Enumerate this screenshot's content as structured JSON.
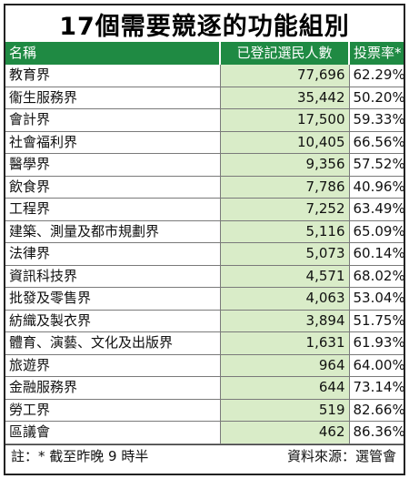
{
  "title": "17個需要競逐的功能組別",
  "headers": {
    "name": "名稱",
    "registered": "已登記選民人數",
    "turnout": "投票率*"
  },
  "rows": [
    {
      "name": "教育界",
      "registered": "77,696",
      "turnout": "62.29%"
    },
    {
      "name": "衞生服務界",
      "registered": "35,442",
      "turnout": "50.20%"
    },
    {
      "name": "會計界",
      "registered": "17,500",
      "turnout": "59.33%"
    },
    {
      "name": "社會福利界",
      "registered": "10,405",
      "turnout": "66.56%"
    },
    {
      "name": "醫學界",
      "registered": "9,356",
      "turnout": "57.52%"
    },
    {
      "name": "飲食界",
      "registered": "7,786",
      "turnout": "40.96%"
    },
    {
      "name": "工程界",
      "registered": "7,252",
      "turnout": "63.49%"
    },
    {
      "name": "建築、測量及都市規劃界",
      "registered": "5,116",
      "turnout": "65.09%"
    },
    {
      "name": "法律界",
      "registered": "5,073",
      "turnout": "60.14%"
    },
    {
      "name": "資訊科技界",
      "registered": "4,571",
      "turnout": "68.02%"
    },
    {
      "name": "批發及零售界",
      "registered": "4,063",
      "turnout": "53.04%"
    },
    {
      "name": "紡織及製衣界",
      "registered": "3,894",
      "turnout": "51.75%"
    },
    {
      "name": "體育、演藝、文化及出版界",
      "registered": "1,631",
      "turnout": "61.93%"
    },
    {
      "name": "旅遊界",
      "registered": "964",
      "turnout": "64.00%"
    },
    {
      "name": "金融服務界",
      "registered": "644",
      "turnout": "73.14%"
    },
    {
      "name": "勞工界",
      "registered": "519",
      "turnout": "82.66%"
    },
    {
      "name": "區議會",
      "registered": "462",
      "turnout": "86.36%"
    }
  ],
  "footer": {
    "note": "註：* 截至昨晚 9 時半",
    "source": "資料來源：選管會"
  },
  "colors": {
    "header_bg": "#1f8a43",
    "registered_col_bg": "#d9ecc8"
  },
  "chart_data": {
    "type": "table",
    "title": "17個需要競逐的功能組別",
    "columns": [
      "名稱",
      "已登記選民人數",
      "投票率*"
    ],
    "categories": [
      "教育界",
      "衞生服務界",
      "會計界",
      "社會福利界",
      "醫學界",
      "飲食界",
      "工程界",
      "建築、測量及都市規劃界",
      "法律界",
      "資訊科技界",
      "批發及零售界",
      "紡織及製衣界",
      "體育、演藝、文化及出版界",
      "旅遊界",
      "金融服務界",
      "勞工界",
      "區議會"
    ],
    "series": [
      {
        "name": "已登記選民人數",
        "values": [
          77696,
          35442,
          17500,
          10405,
          9356,
          7786,
          7252,
          5116,
          5073,
          4571,
          4063,
          3894,
          1631,
          964,
          644,
          519,
          462
        ]
      },
      {
        "name": "投票率*",
        "values": [
          62.29,
          50.2,
          59.33,
          66.56,
          57.52,
          40.96,
          63.49,
          65.09,
          60.14,
          68.02,
          53.04,
          51.75,
          61.93,
          64.0,
          73.14,
          82.66,
          86.36
        ]
      }
    ]
  }
}
